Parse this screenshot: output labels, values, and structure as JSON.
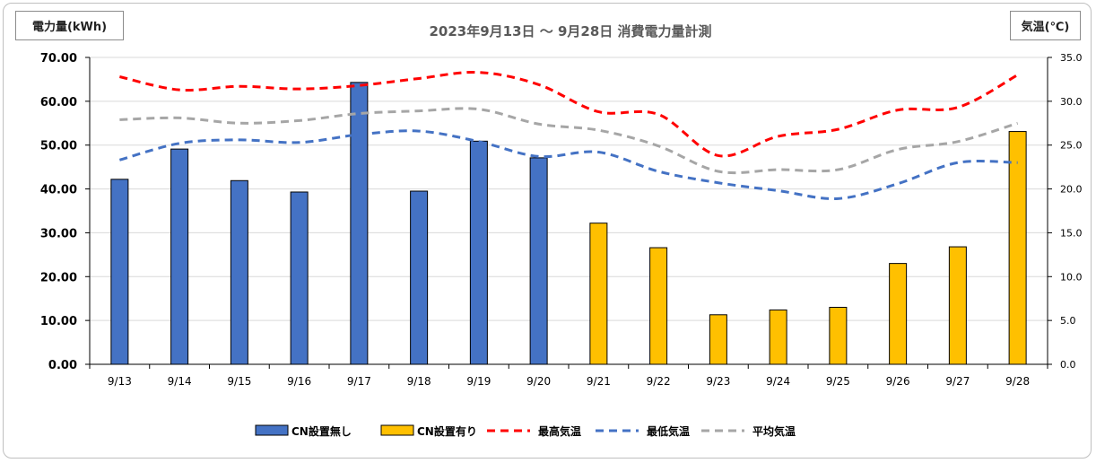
{
  "chart_data": {
    "type": "bar",
    "title": "2023年9月13日 ～ 9月28日 消費電力量計測",
    "ylabel": "電力量(kWh)",
    "y2label": "気温(℃)",
    "ylim": [
      0,
      70
    ],
    "y2lim": [
      0,
      35
    ],
    "yticks": [
      "0.00",
      "10.00",
      "20.00",
      "30.00",
      "40.00",
      "50.00",
      "60.00",
      "70.00"
    ],
    "y2ticks": [
      "0.0",
      "5.0",
      "10.0",
      "15.0",
      "20.0",
      "25.0",
      "30.0",
      "35.0"
    ],
    "grid": true,
    "legend_position": "bottom",
    "categories": [
      "9/13",
      "9/14",
      "9/15",
      "9/16",
      "9/17",
      "9/18",
      "9/19",
      "9/20",
      "9/21",
      "9/22",
      "9/23",
      "9/24",
      "9/25",
      "9/26",
      "9/27",
      "9/28"
    ],
    "series": [
      {
        "name": "CN設置無し",
        "kind": "bar",
        "axis": "left",
        "color": "#4472c4",
        "values": [
          42.2,
          49.1,
          41.9,
          39.3,
          64.3,
          39.5,
          50.9,
          47.1,
          null,
          null,
          null,
          null,
          null,
          null,
          null,
          null
        ]
      },
      {
        "name": "CN設置有り",
        "kind": "bar",
        "axis": "left",
        "color": "#ffc000",
        "values": [
          null,
          null,
          null,
          null,
          null,
          null,
          null,
          null,
          32.2,
          26.6,
          11.3,
          12.4,
          13.0,
          23.0,
          26.8,
          53.1
        ]
      },
      {
        "name": "最高気温",
        "kind": "line",
        "axis": "right",
        "color": "#ff0000",
        "values": [
          32.8,
          31.3,
          31.7,
          31.4,
          31.8,
          32.6,
          33.3,
          31.9,
          28.8,
          28.5,
          23.8,
          26.0,
          26.8,
          29.0,
          29.3,
          33.0
        ]
      },
      {
        "name": "最低気温",
        "kind": "line",
        "axis": "right",
        "color": "#4472c4",
        "values": [
          23.3,
          25.2,
          25.6,
          25.3,
          26.2,
          26.6,
          25.4,
          23.7,
          24.2,
          22.0,
          20.7,
          19.8,
          18.9,
          20.6,
          23.0,
          23.0
        ]
      },
      {
        "name": "平均気温",
        "kind": "line",
        "axis": "right",
        "color": "#a6a6a6",
        "values": [
          27.9,
          28.1,
          27.5,
          27.8,
          28.6,
          28.9,
          29.1,
          27.4,
          26.7,
          24.9,
          22.0,
          22.2,
          22.2,
          24.5,
          25.4,
          27.5
        ]
      }
    ]
  }
}
